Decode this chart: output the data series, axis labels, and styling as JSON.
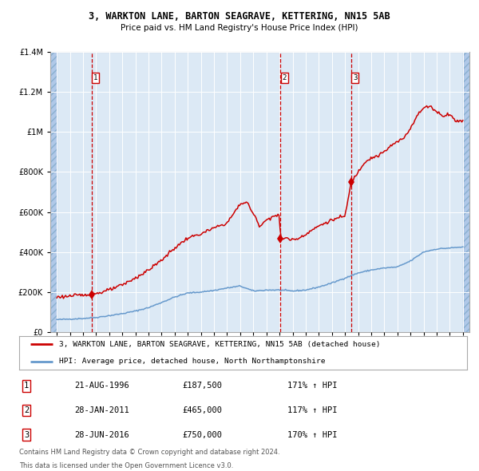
{
  "title1": "3, WARKTON LANE, BARTON SEAGRAVE, KETTERING, NN15 5AB",
  "title2": "Price paid vs. HM Land Registry's House Price Index (HPI)",
  "red_label": "3, WARKTON LANE, BARTON SEAGRAVE, KETTERING, NN15 5AB (detached house)",
  "blue_label": "HPI: Average price, detached house, North Northamptonshire",
  "transactions": [
    {
      "num": 1,
      "date": "21-AUG-1996",
      "year": 1996.64,
      "price": 187500,
      "hpi_pct": "171% ↑ HPI"
    },
    {
      "num": 2,
      "date": "28-JAN-2011",
      "year": 2011.08,
      "price": 465000,
      "hpi_pct": "117% ↑ HPI"
    },
    {
      "num": 3,
      "date": "28-JUN-2016",
      "year": 2016.49,
      "price": 750000,
      "hpi_pct": "170% ↑ HPI"
    }
  ],
  "footer1": "Contains HM Land Registry data © Crown copyright and database right 2024.",
  "footer2": "This data is licensed under the Open Government Licence v3.0.",
  "bg_color": "#dce9f5",
  "hatch_color": "#b0c8e8",
  "red_color": "#cc0000",
  "blue_color": "#6699cc",
  "ylim": [
    0,
    1400000
  ],
  "xlim_start": 1993.5,
  "xlim_end": 2025.5
}
